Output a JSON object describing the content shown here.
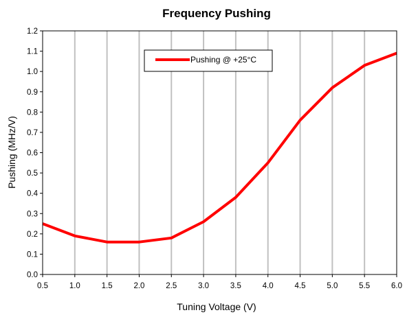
{
  "chart_data": {
    "type": "line",
    "title": "Frequency Pushing",
    "xlabel": "Tuning Voltage (V)",
    "ylabel": "Pushing (MHz/V)",
    "xlim": [
      0.5,
      6.0
    ],
    "ylim": [
      0.0,
      1.2
    ],
    "x_ticks": [
      "0.5",
      "1.0",
      "1.5",
      "2.0",
      "2.5",
      "3.0",
      "3.5",
      "4.0",
      "4.5",
      "5.0",
      "5.5",
      "6.0"
    ],
    "y_ticks": [
      "0.0",
      "0.1",
      "0.2",
      "0.3",
      "0.4",
      "0.5",
      "0.6",
      "0.7",
      "0.8",
      "0.9",
      "1.0",
      "1.1",
      "1.2"
    ],
    "grid": "vertical",
    "legend_position": "top-left",
    "series": [
      {
        "name": "Pushing @ +25°C",
        "color": "#ff0000",
        "x": [
          0.5,
          1.0,
          1.5,
          2.0,
          2.5,
          3.0,
          3.5,
          4.0,
          4.5,
          5.0,
          5.5,
          6.0
        ],
        "y": [
          0.25,
          0.19,
          0.16,
          0.16,
          0.18,
          0.26,
          0.38,
          0.55,
          0.76,
          0.92,
          1.03,
          1.09
        ]
      }
    ]
  }
}
